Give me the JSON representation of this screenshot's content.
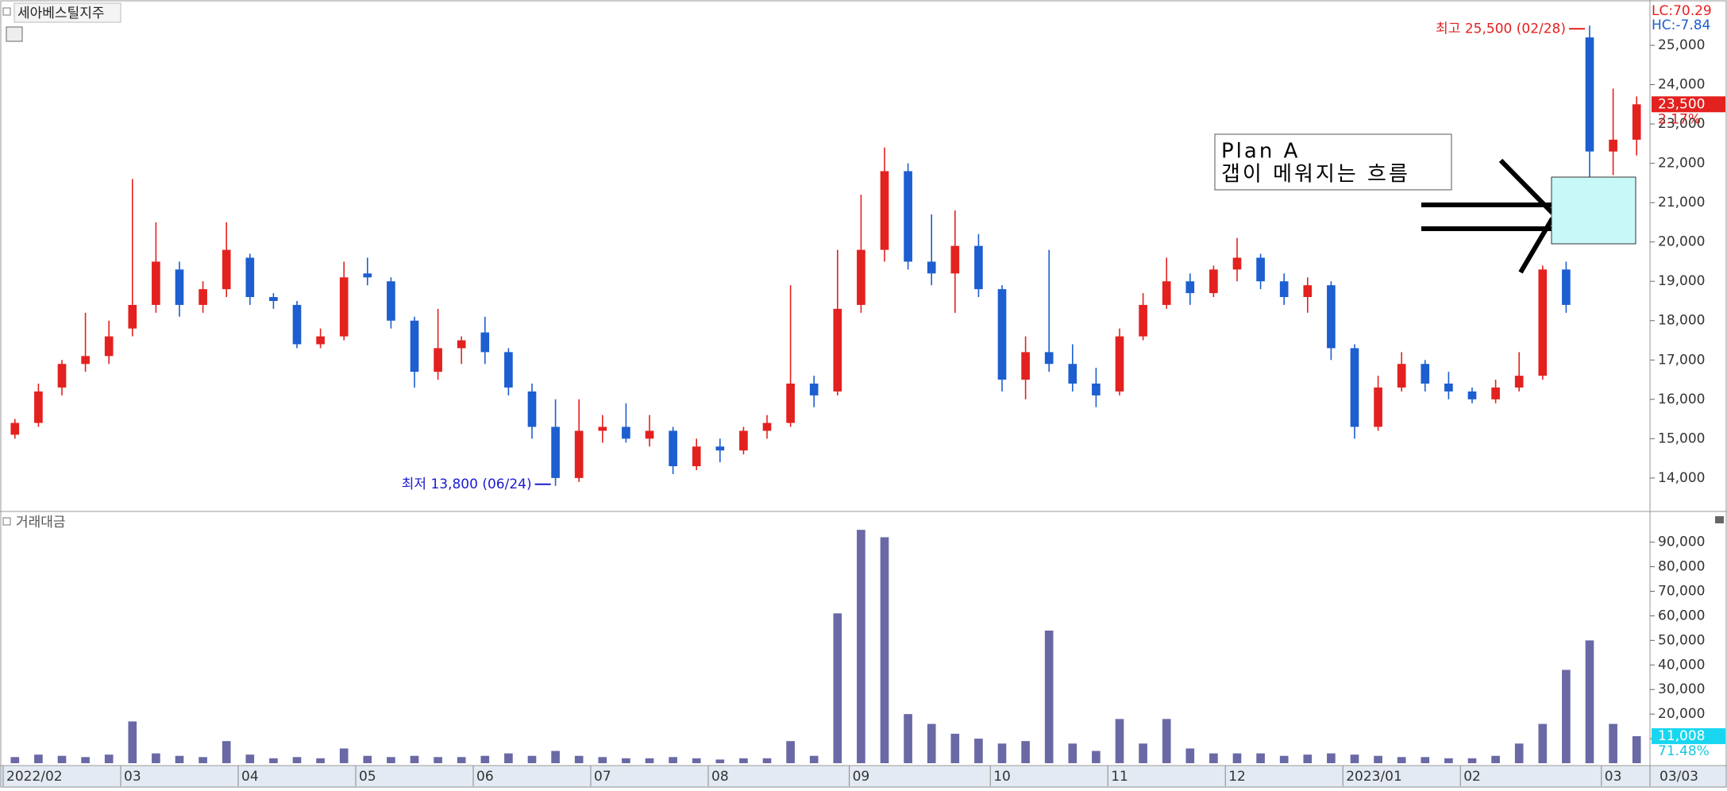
{
  "chart_data": {
    "type": "candlestick",
    "title": "세아베스틸지주",
    "volume_title": "거래대금",
    "categories": [
      "2022/02",
      null,
      null,
      null,
      null,
      "03",
      null,
      null,
      null,
      null,
      "04",
      null,
      null,
      null,
      null,
      "05",
      null,
      null,
      null,
      null,
      "06",
      null,
      null,
      null,
      null,
      "07",
      null,
      null,
      null,
      null,
      "08",
      null,
      null,
      null,
      null,
      null,
      "09",
      null,
      null,
      null,
      null,
      null,
      "10",
      null,
      null,
      null,
      null,
      "11",
      null,
      null,
      null,
      null,
      "12",
      null,
      null,
      null,
      null,
      "2023/01",
      null,
      null,
      null,
      null,
      "02",
      null,
      null,
      null,
      null,
      null,
      "03",
      null
    ],
    "x_end_label": "03/03",
    "open": [
      15100,
      15400,
      16300,
      16900,
      17100,
      17800,
      18400,
      19300,
      18400,
      18800,
      19600,
      18600,
      18400,
      17400,
      17600,
      19200,
      19000,
      18000,
      16700,
      17300,
      17700,
      17200,
      16200,
      15300,
      14000,
      15200,
      15300,
      15000,
      15200,
      14300,
      14800,
      14700,
      15200,
      15400,
      16400,
      16200,
      18400,
      19800,
      21800,
      19500,
      19200,
      19900,
      18800,
      16500,
      17200,
      16900,
      16400,
      16200,
      17600,
      18400,
      19000,
      18700,
      19300,
      19600,
      19000,
      18600,
      18900,
      17300,
      15300,
      16300,
      16900,
      16400,
      16200,
      16000,
      16300,
      16600,
      19300,
      25200,
      22300,
      22600
    ],
    "high": [
      15500,
      16400,
      17000,
      18200,
      18000,
      21600,
      20500,
      19500,
      19000,
      20500,
      19700,
      18700,
      18500,
      17800,
      19500,
      19600,
      19100,
      18100,
      18300,
      17600,
      18100,
      17300,
      16400,
      16000,
      16000,
      15600,
      15900,
      15600,
      15300,
      15000,
      15000,
      15300,
      15600,
      18900,
      16600,
      19800,
      21200,
      22400,
      22000,
      20700,
      20800,
      20200,
      18900,
      17600,
      19800,
      17400,
      16800,
      17800,
      18700,
      19600,
      19200,
      19400,
      20100,
      19700,
      19200,
      19100,
      19000,
      17400,
      16600,
      17200,
      17000,
      16700,
      16300,
      16500,
      17200,
      19400,
      19500,
      25500,
      23900,
      23700
    ],
    "low": [
      15000,
      15300,
      16100,
      16700,
      16900,
      17600,
      18200,
      18100,
      18200,
      18600,
      18400,
      18300,
      17300,
      17300,
      17500,
      18900,
      17800,
      16300,
      16500,
      16900,
      16900,
      16100,
      15000,
      13800,
      13900,
      14900,
      14900,
      14800,
      14100,
      14200,
      14400,
      14600,
      15000,
      15300,
      15800,
      16100,
      18200,
      19500,
      19300,
      18900,
      18200,
      18600,
      16200,
      16000,
      16700,
      16200,
      15800,
      16100,
      17500,
      18300,
      18400,
      18600,
      19000,
      18800,
      18400,
      18200,
      17000,
      15000,
      15200,
      16200,
      16200,
      16000,
      15900,
      15900,
      16200,
      16500,
      18200,
      21500,
      21700,
      22200
    ],
    "close": [
      15400,
      16200,
      16900,
      17100,
      17600,
      18400,
      19500,
      18400,
      18800,
      19800,
      18600,
      18500,
      17400,
      17600,
      19100,
      19100,
      18000,
      16700,
      17300,
      17500,
      17200,
      16300,
      15300,
      14000,
      15200,
      15300,
      15000,
      15200,
      14300,
      14800,
      14700,
      15200,
      15400,
      16400,
      16100,
      18300,
      19800,
      21800,
      19500,
      19200,
      19900,
      18800,
      16500,
      17200,
      16900,
      16400,
      16100,
      17600,
      18400,
      19000,
      18700,
      19300,
      19600,
      19000,
      18600,
      18900,
      17300,
      15300,
      16300,
      16900,
      16400,
      16200,
      16000,
      16300,
      16600,
      19300,
      18400,
      22300,
      22600,
      23500
    ],
    "volume": [
      2500,
      3500,
      3000,
      2500,
      3500,
      17000,
      4000,
      3000,
      2500,
      9000,
      3500,
      2000,
      2500,
      2000,
      6000,
      3000,
      2500,
      3000,
      2500,
      2500,
      3000,
      4000,
      3000,
      5000,
      3000,
      2500,
      2000,
      2000,
      2500,
      2000,
      1500,
      2000,
      2000,
      9000,
      3000,
      61000,
      95000,
      92000,
      20000,
      16000,
      12000,
      10000,
      8000,
      9000,
      54000,
      8000,
      5000,
      18000,
      8000,
      18000,
      6000,
      4000,
      4000,
      4000,
      3000,
      3500,
      4000,
      3500,
      3000,
      2500,
      2500,
      2000,
      2000,
      3000,
      8000,
      16000,
      38000,
      50000,
      16000,
      11008
    ],
    "up_color": "#e3211f",
    "down_color": "#1d5ed0",
    "volume_color": "#6a69a6",
    "ylim": [
      13190,
      26030
    ],
    "yticks": [
      {
        "value": 14000,
        "label": "14,000"
      },
      {
        "value": 15000,
        "label": "15,000"
      },
      {
        "value": 16000,
        "label": "16,000"
      },
      {
        "value": 17000,
        "label": "17,000"
      },
      {
        "value": 18000,
        "label": "18,000"
      },
      {
        "value": 19000,
        "label": "19,000"
      },
      {
        "value": 20000,
        "label": "20,000"
      },
      {
        "value": 21000,
        "label": "21,000"
      },
      {
        "value": 22000,
        "label": "22,000"
      },
      {
        "value": 23000,
        "label": "23,000"
      },
      {
        "value": 24000,
        "label": "24,000"
      },
      {
        "value": 25000,
        "label": "25,000"
      }
    ],
    "volume_ylim": [
      0,
      101200
    ],
    "volume_yticks": [
      {
        "value": 10000,
        "label": "10,000"
      },
      {
        "value": 20000,
        "label": "20,000"
      },
      {
        "value": 30000,
        "label": "30,000"
      },
      {
        "value": 40000,
        "label": "40,000"
      },
      {
        "value": 50000,
        "label": "50,000"
      },
      {
        "value": 60000,
        "label": "60,000"
      },
      {
        "value": 70000,
        "label": "70,000"
      },
      {
        "value": 80000,
        "label": "80,000"
      },
      {
        "value": 90000,
        "label": "90,000"
      }
    ],
    "grid": false,
    "indicators": [
      "LC:70.29",
      "HC:-7.84"
    ],
    "last_price": {
      "value": 23500,
      "label": "23,500"
    },
    "price_change": "2.17%",
    "last_volume": {
      "value": 11008,
      "label": "11,008"
    },
    "volume_ratio": "71.48%",
    "max_label": "최고 25,500 (02/28)",
    "min_label": "최저 13,800 (06/24)",
    "note_title": "Plan A",
    "note_text": "갭이 메워지는 흐름"
  }
}
